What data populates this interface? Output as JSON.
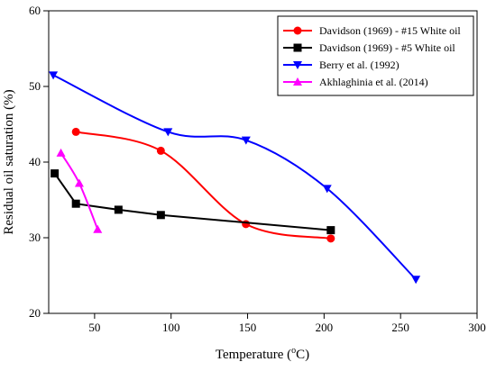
{
  "chart_data": {
    "type": "line",
    "title": "",
    "xlabel_main": "Temperature (",
    "xlabel_sup": "o",
    "xlabel_tail": "C)",
    "ylabel": "Residual oil saturation (%)",
    "xlim": [
      20,
      300
    ],
    "ylim": [
      20,
      60
    ],
    "xticks": [
      "50",
      "100",
      "150",
      "200",
      "250",
      "300"
    ],
    "xtick_values": [
      50,
      100,
      150,
      200,
      250,
      300
    ],
    "yticks": [
      "20",
      "30",
      "40",
      "50",
      "60"
    ],
    "ytick_values": [
      20,
      30,
      40,
      50,
      60
    ],
    "grid": false,
    "legend_position": "top-right",
    "series": [
      {
        "name": "Davidson (1969) - #15 White oil",
        "color": "#ff0000",
        "marker": "circle",
        "x": [
          37.8,
          93.3,
          148.9,
          204.4
        ],
        "y": [
          44.0,
          41.5,
          31.8,
          29.9
        ]
      },
      {
        "name": "Davidson (1969) - #5 White oil",
        "color": "#000000",
        "marker": "square",
        "x": [
          23.9,
          37.8,
          65.6,
          93.3,
          204.4
        ],
        "y": [
          38.5,
          34.5,
          33.7,
          33.0,
          31.0
        ]
      },
      {
        "name": "Berry et al. (1992)",
        "color": "#0000ff",
        "marker": "triangle-down",
        "x": [
          23.0,
          98.0,
          149.0,
          202.0,
          260.0
        ],
        "y": [
          51.5,
          44.0,
          42.9,
          36.5,
          24.5
        ]
      },
      {
        "name": "Akhlaghinia et al. (2014)",
        "color": "#ff00ff",
        "marker": "triangle-up",
        "x": [
          28.0,
          40.0,
          52.0
        ],
        "y": [
          41.2,
          37.2,
          31.1
        ]
      }
    ]
  }
}
